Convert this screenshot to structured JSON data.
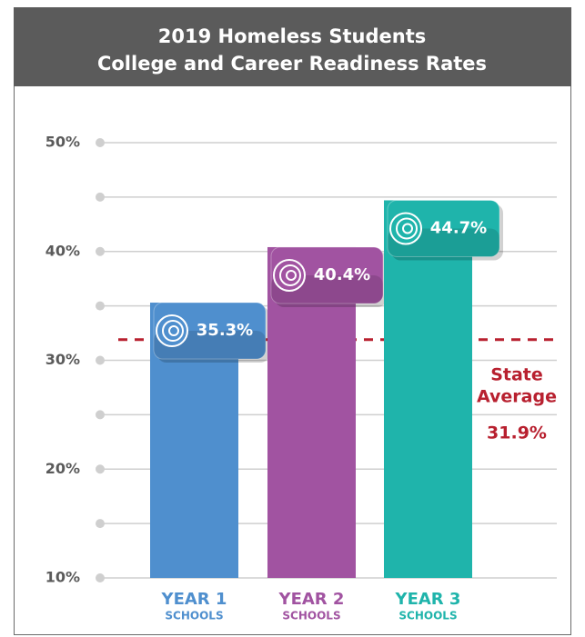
{
  "chart_data": {
    "type": "bar",
    "title": [
      "2019 Homeless Students",
      "College and Career Readiness Rates"
    ],
    "categories": [
      "YEAR 1",
      "YEAR 2",
      "YEAR 3"
    ],
    "category_sublabels": [
      "SCHOOLS",
      "SCHOOLS",
      "SCHOOLS"
    ],
    "values": [
      35.3,
      40.4,
      44.7
    ],
    "value_labels": [
      "35.3%",
      "40.4%",
      "44.7%"
    ],
    "colors": [
      "#4f8fce",
      "#a153a1",
      "#1fb4ab"
    ],
    "ylim": [
      10,
      50
    ],
    "yticks": [
      {
        "value": 10,
        "label": "10%"
      },
      {
        "value": 20,
        "label": "20%"
      },
      {
        "value": 30,
        "label": "30%"
      },
      {
        "value": 40,
        "label": "40%"
      },
      {
        "value": 50,
        "label": "50%"
      }
    ],
    "minor_yticks": [
      15,
      25,
      35,
      45
    ],
    "grid": true,
    "reference_line": {
      "value": 31.9,
      "label": [
        "State",
        "Average"
      ],
      "value_label": "31.9%",
      "color": "#b8202f"
    }
  }
}
